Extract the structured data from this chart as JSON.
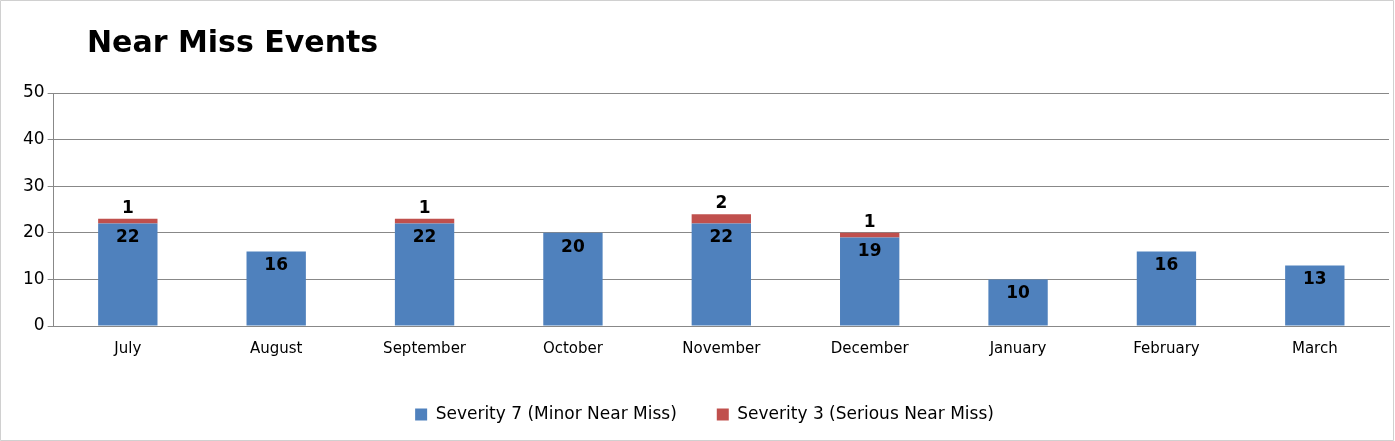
{
  "chart_data": {
    "type": "bar",
    "title": "Near Miss Events",
    "stacked": true,
    "categories": [
      "July",
      "August",
      "September",
      "October",
      "November",
      "December",
      "January",
      "February",
      "March"
    ],
    "series": [
      {
        "name": "Severity 7 (Minor Near Miss)",
        "color": "#4f81bd",
        "values": [
          22,
          16,
          22,
          20,
          22,
          19,
          10,
          16,
          13
        ]
      },
      {
        "name": "Severity 3 (Serious Near Miss)",
        "color": "#c0504d",
        "values": [
          1,
          null,
          1,
          null,
          2,
          1,
          null,
          null,
          null
        ]
      }
    ],
    "ylim": [
      0,
      50
    ],
    "yticks": [
      0,
      10,
      20,
      30,
      40,
      50
    ],
    "grid": "y",
    "legend": "bottom",
    "data_labels": true
  }
}
